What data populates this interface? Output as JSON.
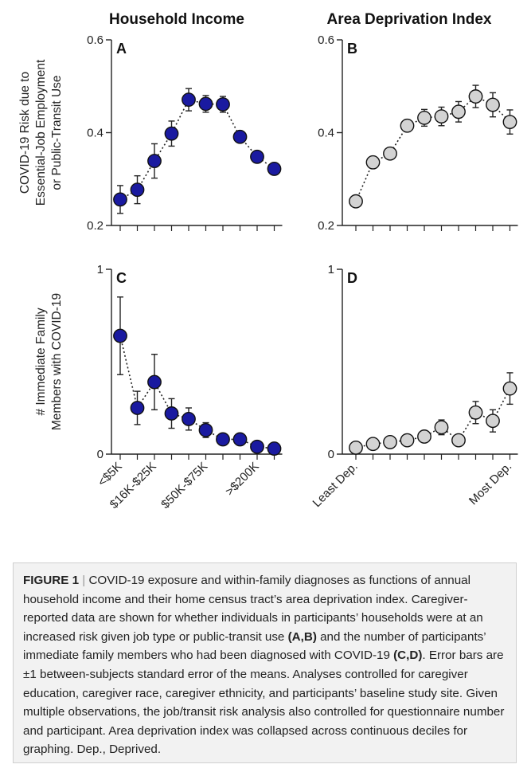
{
  "chart_data": [
    {
      "panel": "A",
      "type": "scatter",
      "title": "Household Income",
      "ylabel_lines": [
        "COVID-19 Risk due to",
        "Essential-Job Employment",
        "or Public-Transit Use"
      ],
      "ylim": [
        0.2,
        0.6
      ],
      "yticks": [
        "0.2",
        "0.4",
        "0.6"
      ],
      "x": [
        1,
        2,
        3,
        4,
        5,
        6,
        7,
        8,
        9,
        10
      ],
      "values": [
        0.256,
        0.277,
        0.339,
        0.398,
        0.471,
        0.462,
        0.461,
        0.391,
        0.348,
        0.322
      ],
      "errors": [
        0.03,
        0.03,
        0.037,
        0.027,
        0.024,
        0.018,
        0.017,
        0.012,
        0.01,
        0.009
      ],
      "marker_color": "#1a1aa0",
      "connector": "dotted"
    },
    {
      "panel": "B",
      "type": "scatter",
      "title": "Area Deprivation Index",
      "ylim": [
        0.2,
        0.6
      ],
      "yticks": [
        "0.2",
        "0.4",
        "0.6"
      ],
      "x": [
        1,
        2,
        3,
        4,
        5,
        6,
        7,
        8,
        9,
        10
      ],
      "values": [
        0.252,
        0.336,
        0.355,
        0.415,
        0.432,
        0.435,
        0.445,
        0.478,
        0.46,
        0.423
      ],
      "errors": [
        0.006,
        0.01,
        0.011,
        0.013,
        0.018,
        0.02,
        0.022,
        0.024,
        0.026,
        0.026
      ],
      "marker_color": "#d3d3d3",
      "connector": "dotted"
    },
    {
      "panel": "C",
      "type": "scatter",
      "ylabel_lines": [
        "# Immediate Family",
        "Members with COVID-19"
      ],
      "ylim": [
        0,
        1
      ],
      "yticks": [
        "0",
        "1"
      ],
      "x": [
        1,
        2,
        3,
        4,
        5,
        6,
        7,
        8,
        9,
        10
      ],
      "values": [
        0.64,
        0.25,
        0.39,
        0.22,
        0.19,
        0.13,
        0.08,
        0.08,
        0.04,
        0.03
      ],
      "errors": [
        0.21,
        0.09,
        0.15,
        0.08,
        0.06,
        0.04,
        0.02,
        0.02,
        0.01,
        0.01
      ],
      "xtick_labels": {
        "1": "<$5K",
        "3": "$16K-$25K",
        "6": "$50K-$75K",
        "9": ">$200K"
      },
      "marker_color": "#1a1aa0",
      "connector": "dotted"
    },
    {
      "panel": "D",
      "type": "scatter",
      "ylim": [
        0,
        1
      ],
      "yticks": [
        "0",
        "1"
      ],
      "x": [
        1,
        2,
        3,
        4,
        5,
        6,
        7,
        8,
        9,
        10
      ],
      "values": [
        0.035,
        0.055,
        0.065,
        0.075,
        0.095,
        0.145,
        0.075,
        0.225,
        0.18,
        0.355
      ],
      "errors": [
        0.005,
        0.01,
        0.01,
        0.01,
        0.015,
        0.04,
        0.015,
        0.06,
        0.06,
        0.085
      ],
      "xtick_labels": {
        "1": "Least Dep.",
        "10": "Most Dep."
      },
      "marker_color": "#d3d3d3",
      "connector": "dotted"
    }
  ],
  "caption": {
    "figure_label": "FIGURE 1",
    "separator": "|",
    "text_1": " COVID-19 exposure and within-family diagnoses as functions of annual household income and their home census tract’s area deprivation index. Caregiver-reported data are shown for whether individuals in participants’ households were at an increased risk given job type or public-transit use ",
    "ref_ab": "(A,B)",
    "text_2": " and the number of participants’ immediate family members who had been diagnosed with COVID-19 ",
    "ref_cd": "(C,D)",
    "text_3": ". Error bars are ±1 between-subjects standard error of the means. Analyses controlled for caregiver education, caregiver race, caregiver ethnicity, and participants’ baseline study site. Given multiple observations, the job/transit risk analysis also controlled for questionnaire number and participant. Area deprivation index was collapsed across continuous deciles for graphing. Dep., Deprived."
  }
}
